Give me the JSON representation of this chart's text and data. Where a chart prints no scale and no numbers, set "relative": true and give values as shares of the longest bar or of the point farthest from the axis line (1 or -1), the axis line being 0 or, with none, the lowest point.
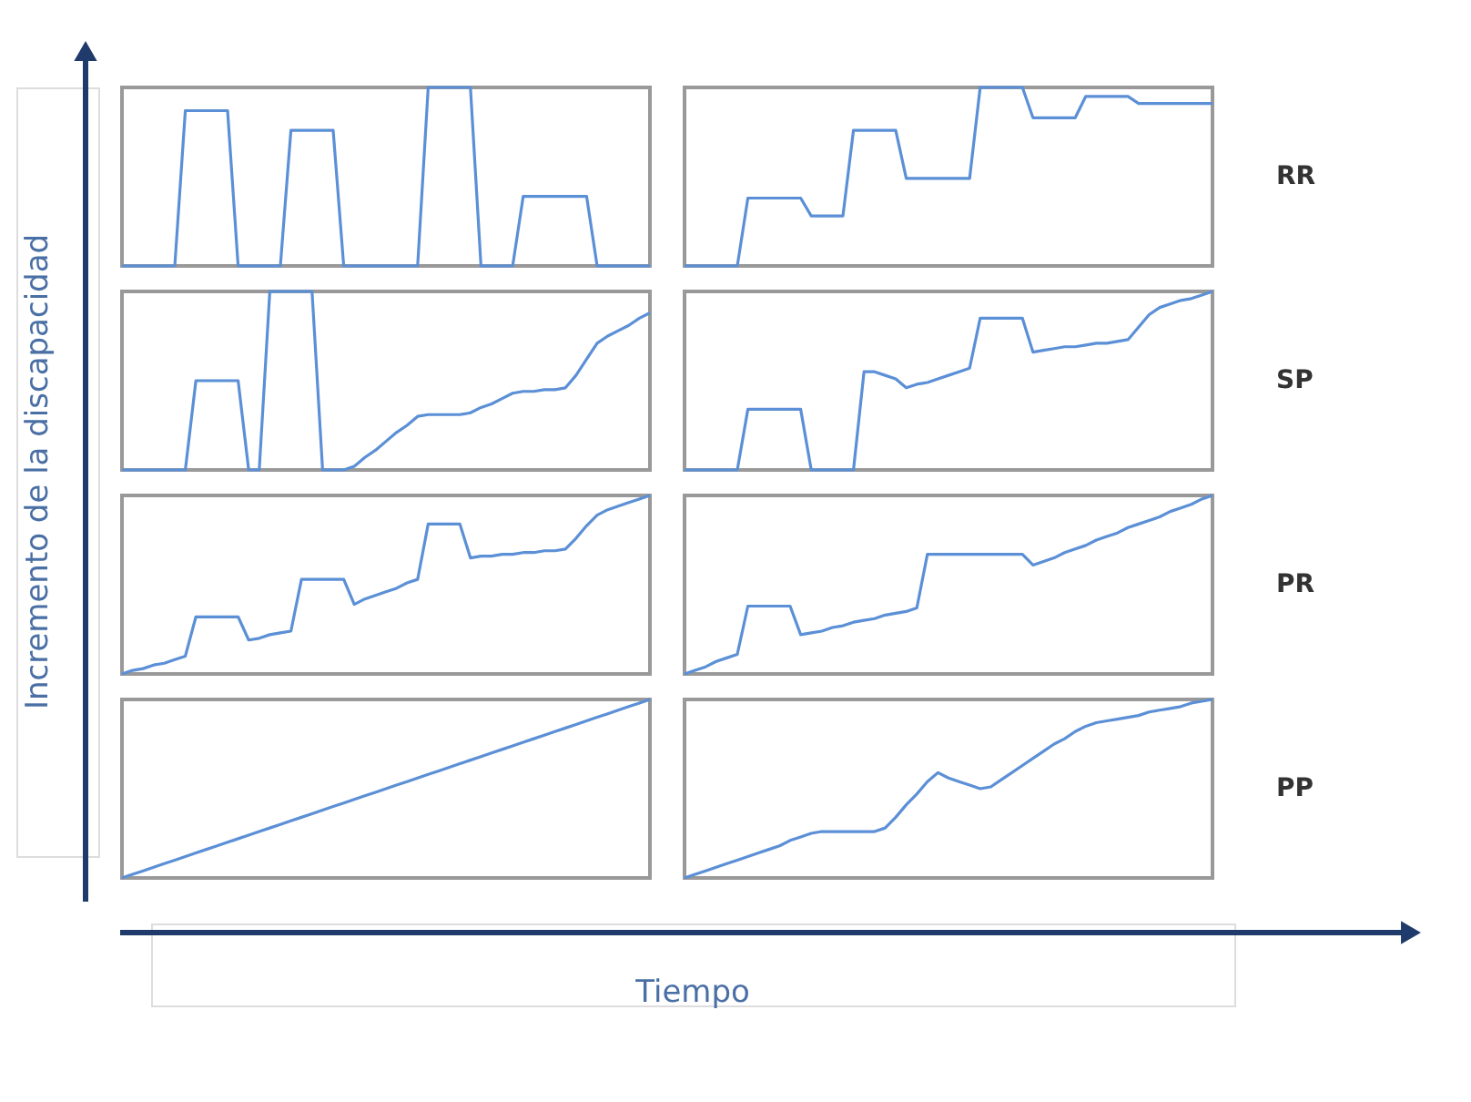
{
  "chart_data": [
    {
      "type": "line",
      "relative": true,
      "tick_labels": false,
      "color": "#5b8fd6",
      "ylabel": "Incremento de la discapacidad",
      "categories": [
        null,
        null,
        null,
        null,
        null,
        null,
        null,
        null,
        null,
        null,
        null,
        null,
        null,
        null,
        null,
        null,
        null,
        null,
        null,
        null,
        null,
        null,
        null,
        null,
        null,
        null,
        null,
        null,
        null,
        null,
        null,
        null,
        null,
        null,
        null,
        null,
        null,
        null,
        null,
        null,
        null,
        null,
        null,
        null,
        null,
        null,
        null,
        null,
        null,
        null,
        null
      ],
      "values": [
        0,
        0,
        0,
        0,
        0,
        0,
        0.87,
        0.87,
        0.87,
        0.87,
        0.87,
        0,
        0,
        0,
        0,
        0,
        0.76,
        0.76,
        0.76,
        0.76,
        0.76,
        0,
        0,
        0,
        0,
        0,
        0,
        0,
        0,
        1,
        1,
        1,
        1,
        1,
        0,
        0,
        0,
        0,
        0.39,
        0.39,
        0.39,
        0.39,
        0.39,
        0.39,
        0.39,
        0,
        0,
        0,
        0,
        0,
        0
      ]
    },
    {
      "type": "line",
      "relative": true,
      "tick_labels": false,
      "color": "#5b8fd6",
      "annotations": [
        "RR"
      ],
      "categories": [
        null,
        null,
        null,
        null,
        null,
        null,
        null,
        null,
        null,
        null,
        null,
        null,
        null,
        null,
        null,
        null,
        null,
        null,
        null,
        null,
        null,
        null,
        null,
        null,
        null,
        null,
        null,
        null,
        null,
        null,
        null,
        null,
        null,
        null,
        null,
        null,
        null,
        null,
        null,
        null,
        null,
        null,
        null,
        null,
        null,
        null,
        null,
        null,
        null,
        null,
        null
      ],
      "values": [
        0,
        0,
        0,
        0,
        0,
        0,
        0.38,
        0.38,
        0.38,
        0.38,
        0.38,
        0.38,
        0.28,
        0.28,
        0.28,
        0.28,
        0.76,
        0.76,
        0.76,
        0.76,
        0.76,
        0.49,
        0.49,
        0.49,
        0.49,
        0.49,
        0.49,
        0.49,
        1,
        1,
        1,
        1,
        1,
        0.83,
        0.83,
        0.83,
        0.83,
        0.83,
        0.95,
        0.95,
        0.95,
        0.95,
        0.95,
        0.91,
        0.91,
        0.91,
        0.91,
        0.91,
        0.91,
        0.91,
        0.91
      ]
    },
    {
      "type": "line",
      "relative": true,
      "tick_labels": false,
      "color": "#5b8fd6",
      "categories": [
        null,
        null,
        null,
        null,
        null,
        null,
        null,
        null,
        null,
        null,
        null,
        null,
        null,
        null,
        null,
        null,
        null,
        null,
        null,
        null,
        null,
        null,
        null,
        null,
        null,
        null,
        null,
        null,
        null,
        null,
        null,
        null,
        null,
        null,
        null,
        null,
        null,
        null,
        null,
        null,
        null,
        null,
        null,
        null,
        null,
        null,
        null,
        null,
        null,
        null,
        null
      ],
      "values": [
        0,
        0,
        0,
        0,
        0,
        0,
        0,
        0.5,
        0.5,
        0.5,
        0.5,
        0.5,
        0,
        0,
        1,
        1,
        1,
        1,
        1,
        0,
        0,
        0,
        0.02,
        0.07,
        0.11,
        0.16,
        0.21,
        0.25,
        0.3,
        0.31,
        0.31,
        0.31,
        0.31,
        0.32,
        0.35,
        0.37,
        0.4,
        0.43,
        0.44,
        0.44,
        0.45,
        0.45,
        0.46,
        0.53,
        0.62,
        0.71,
        0.75,
        0.78,
        0.81,
        0.85,
        0.88
      ]
    },
    {
      "type": "line",
      "relative": true,
      "tick_labels": false,
      "color": "#5b8fd6",
      "annotations": [
        "SP"
      ],
      "categories": [
        null,
        null,
        null,
        null,
        null,
        null,
        null,
        null,
        null,
        null,
        null,
        null,
        null,
        null,
        null,
        null,
        null,
        null,
        null,
        null,
        null,
        null,
        null,
        null,
        null,
        null,
        null,
        null,
        null,
        null,
        null,
        null,
        null,
        null,
        null,
        null,
        null,
        null,
        null,
        null,
        null,
        null,
        null,
        null,
        null,
        null,
        null,
        null,
        null,
        null,
        null
      ],
      "values": [
        0,
        0,
        0,
        0,
        0,
        0,
        0.34,
        0.34,
        0.34,
        0.34,
        0.34,
        0.34,
        0,
        0,
        0,
        0,
        0,
        0.55,
        0.55,
        0.53,
        0.51,
        0.46,
        0.48,
        0.49,
        0.51,
        0.53,
        0.55,
        0.57,
        0.85,
        0.85,
        0.85,
        0.85,
        0.85,
        0.66,
        0.67,
        0.68,
        0.69,
        0.69,
        0.7,
        0.71,
        0.71,
        0.72,
        0.73,
        0.8,
        0.87,
        0.91,
        0.93,
        0.95,
        0.96,
        0.98,
        1
      ]
    },
    {
      "type": "line",
      "relative": true,
      "tick_labels": false,
      "color": "#5b8fd6",
      "categories": [
        null,
        null,
        null,
        null,
        null,
        null,
        null,
        null,
        null,
        null,
        null,
        null,
        null,
        null,
        null,
        null,
        null,
        null,
        null,
        null,
        null,
        null,
        null,
        null,
        null,
        null,
        null,
        null,
        null,
        null,
        null,
        null,
        null,
        null,
        null,
        null,
        null,
        null,
        null,
        null,
        null,
        null,
        null,
        null,
        null,
        null,
        null,
        null,
        null,
        null,
        null
      ],
      "values": [
        0,
        0.02,
        0.03,
        0.05,
        0.06,
        0.08,
        0.1,
        0.32,
        0.32,
        0.32,
        0.32,
        0.32,
        0.19,
        0.2,
        0.22,
        0.23,
        0.24,
        0.53,
        0.53,
        0.53,
        0.53,
        0.53,
        0.39,
        0.42,
        0.44,
        0.46,
        0.48,
        0.51,
        0.53,
        0.84,
        0.84,
        0.84,
        0.84,
        0.65,
        0.66,
        0.66,
        0.67,
        0.67,
        0.68,
        0.68,
        0.69,
        0.69,
        0.7,
        0.76,
        0.83,
        0.89,
        0.92,
        0.94,
        0.96,
        0.98,
        1
      ]
    },
    {
      "type": "line",
      "relative": true,
      "tick_labels": false,
      "color": "#5b8fd6",
      "annotations": [
        "PR"
      ],
      "categories": [
        null,
        null,
        null,
        null,
        null,
        null,
        null,
        null,
        null,
        null,
        null,
        null,
        null,
        null,
        null,
        null,
        null,
        null,
        null,
        null,
        null,
        null,
        null,
        null,
        null,
        null,
        null,
        null,
        null,
        null,
        null,
        null,
        null,
        null,
        null,
        null,
        null,
        null,
        null,
        null,
        null,
        null,
        null,
        null,
        null,
        null,
        null,
        null,
        null,
        null,
        null
      ],
      "values": [
        0,
        0.02,
        0.04,
        0.07,
        0.09,
        0.11,
        0.38,
        0.38,
        0.38,
        0.38,
        0.38,
        0.22,
        0.23,
        0.24,
        0.26,
        0.27,
        0.29,
        0.3,
        0.31,
        0.33,
        0.34,
        0.35,
        0.37,
        0.67,
        0.67,
        0.67,
        0.67,
        0.67,
        0.67,
        0.67,
        0.67,
        0.67,
        0.67,
        0.61,
        0.63,
        0.65,
        0.68,
        0.7,
        0.72,
        0.75,
        0.77,
        0.79,
        0.82,
        0.84,
        0.86,
        0.88,
        0.91,
        0.93,
        0.95,
        0.98,
        1
      ]
    },
    {
      "type": "line",
      "relative": true,
      "tick_labels": false,
      "color": "#5b8fd6",
      "xlabel": "Tiempo",
      "categories": [
        null,
        null,
        null,
        null,
        null,
        null,
        null,
        null,
        null,
        null,
        null,
        null,
        null,
        null,
        null,
        null,
        null,
        null,
        null,
        null,
        null,
        null,
        null,
        null,
        null,
        null,
        null,
        null,
        null,
        null,
        null,
        null,
        null,
        null,
        null,
        null,
        null,
        null,
        null,
        null,
        null,
        null,
        null,
        null,
        null,
        null,
        null,
        null,
        null,
        null,
        null
      ],
      "values": [
        0,
        0.02,
        0.04,
        0.06,
        0.08,
        0.1,
        0.12,
        0.14,
        0.16,
        0.18,
        0.2,
        0.22,
        0.24,
        0.26,
        0.28,
        0.3,
        0.32,
        0.34,
        0.36,
        0.38,
        0.4,
        0.42,
        0.44,
        0.46,
        0.48,
        0.5,
        0.52,
        0.54,
        0.56,
        0.58,
        0.6,
        0.62,
        0.64,
        0.66,
        0.68,
        0.7,
        0.72,
        0.74,
        0.76,
        0.78,
        0.8,
        0.82,
        0.84,
        0.86,
        0.88,
        0.9,
        0.92,
        0.94,
        0.96,
        0.98,
        1
      ]
    },
    {
      "type": "line",
      "relative": true,
      "tick_labels": false,
      "color": "#5b8fd6",
      "annotations": [
        "PP"
      ],
      "categories": [
        null,
        null,
        null,
        null,
        null,
        null,
        null,
        null,
        null,
        null,
        null,
        null,
        null,
        null,
        null,
        null,
        null,
        null,
        null,
        null,
        null,
        null,
        null,
        null,
        null,
        null,
        null,
        null,
        null,
        null,
        null,
        null,
        null,
        null,
        null,
        null,
        null,
        null,
        null,
        null,
        null,
        null,
        null,
        null,
        null,
        null,
        null,
        null,
        null,
        null,
        null
      ],
      "values": [
        0,
        0.02,
        0.04,
        0.06,
        0.08,
        0.1,
        0.12,
        0.14,
        0.16,
        0.18,
        0.21,
        0.23,
        0.25,
        0.26,
        0.26,
        0.26,
        0.26,
        0.26,
        0.26,
        0.28,
        0.34,
        0.41,
        0.47,
        0.54,
        0.59,
        0.56,
        0.54,
        0.52,
        0.5,
        0.51,
        0.55,
        0.59,
        0.63,
        0.67,
        0.71,
        0.75,
        0.78,
        0.82,
        0.85,
        0.87,
        0.88,
        0.89,
        0.9,
        0.91,
        0.93,
        0.94,
        0.95,
        0.96,
        0.98,
        0.99,
        1
      ]
    }
  ]
}
